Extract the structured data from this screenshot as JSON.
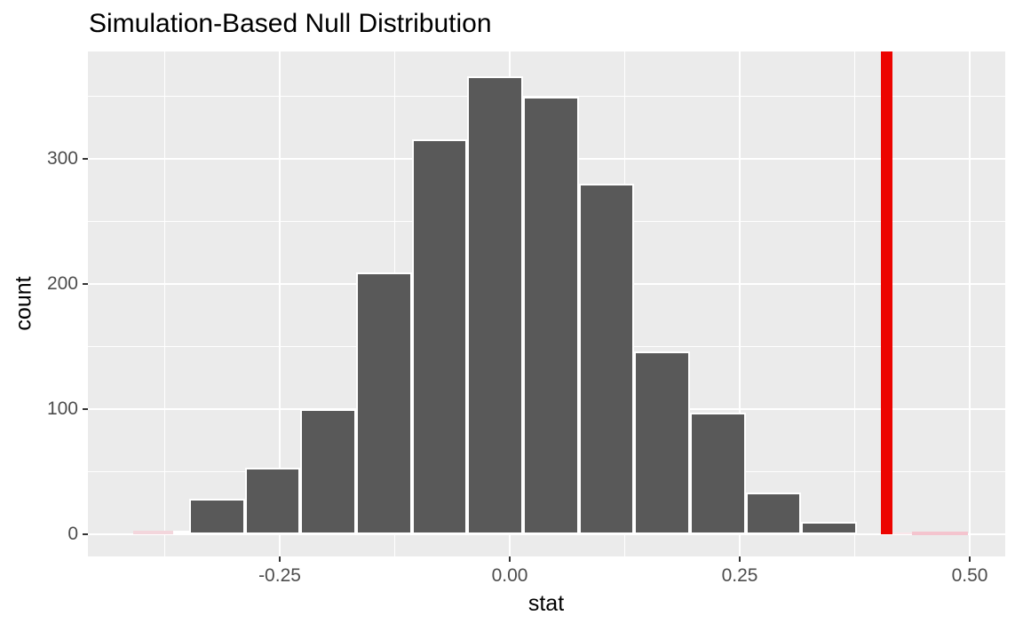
{
  "chart_data": {
    "type": "bar",
    "subtype": "simulation-null-histogram",
    "title": "Simulation-Based Null Distribution",
    "xlabel": "stat",
    "ylabel": "count",
    "x_ticks": {
      "values": [
        -0.25,
        0.0,
        0.25,
        0.5
      ],
      "labels": [
        "-0.25",
        "0.00",
        "0.25",
        "0.50"
      ]
    },
    "y_ticks": {
      "values": [
        0,
        100,
        200,
        300
      ],
      "labels": [
        "0",
        "100",
        "200",
        "300"
      ]
    },
    "x_minor": [
      -0.375,
      -0.125,
      0.125,
      0.375
    ],
    "y_minor": [
      50,
      150,
      250,
      350
    ],
    "xlim": [
      -0.4585,
      0.5386
    ],
    "ylim": [
      -17.8,
      386
    ],
    "grid": "on",
    "legend": "none",
    "observed_stat": 0.41,
    "bins": [
      {
        "x0": -0.4095,
        "x1": -0.3655,
        "count": 3,
        "style": "shaded_left"
      },
      {
        "x0": -0.3655,
        "x1": -0.3485,
        "count": 3,
        "style": "null"
      },
      {
        "x0": -0.3485,
        "x1": -0.288,
        "count": 28,
        "style": "null"
      },
      {
        "x0": -0.288,
        "x1": -0.2275,
        "count": 53,
        "style": "null"
      },
      {
        "x0": -0.2275,
        "x1": -0.167,
        "count": 100,
        "style": "null"
      },
      {
        "x0": -0.167,
        "x1": -0.1065,
        "count": 209,
        "style": "null"
      },
      {
        "x0": -0.1065,
        "x1": -0.046,
        "count": 316,
        "style": "null"
      },
      {
        "x0": -0.046,
        "x1": 0.0145,
        "count": 366,
        "style": "null"
      },
      {
        "x0": 0.0145,
        "x1": 0.075,
        "count": 350,
        "style": "null"
      },
      {
        "x0": 0.075,
        "x1": 0.1355,
        "count": 280,
        "style": "null"
      },
      {
        "x0": 0.1355,
        "x1": 0.196,
        "count": 146,
        "style": "null"
      },
      {
        "x0": 0.196,
        "x1": 0.2565,
        "count": 97,
        "style": "null"
      },
      {
        "x0": 0.2565,
        "x1": 0.317,
        "count": 33,
        "style": "null"
      },
      {
        "x0": 0.317,
        "x1": 0.3775,
        "count": 10,
        "style": "null"
      },
      {
        "x0": 0.437,
        "x1": 0.4985,
        "count": 1,
        "style": "shaded_right"
      }
    ],
    "shade_strip": {
      "x0": 0.4165,
      "x1": 0.4985
    },
    "colors": {
      "panel": "#EBEBEB",
      "grid": "#FFFFFF",
      "bar_fill": "#595959",
      "bar_border": "#FFFFFF",
      "shaded_left_fill": "#CDA2AC",
      "shaded_left_border": "#F3D6DC",
      "shaded_right_fill": "#FBDCE3",
      "shaded_right_border": "#F4C4CE",
      "strip_fill": "#FAE6EA",
      "obs_line": "#EC0400",
      "tick": "#333333",
      "tick_label": "#4D4D4D",
      "text": "#000000"
    }
  }
}
